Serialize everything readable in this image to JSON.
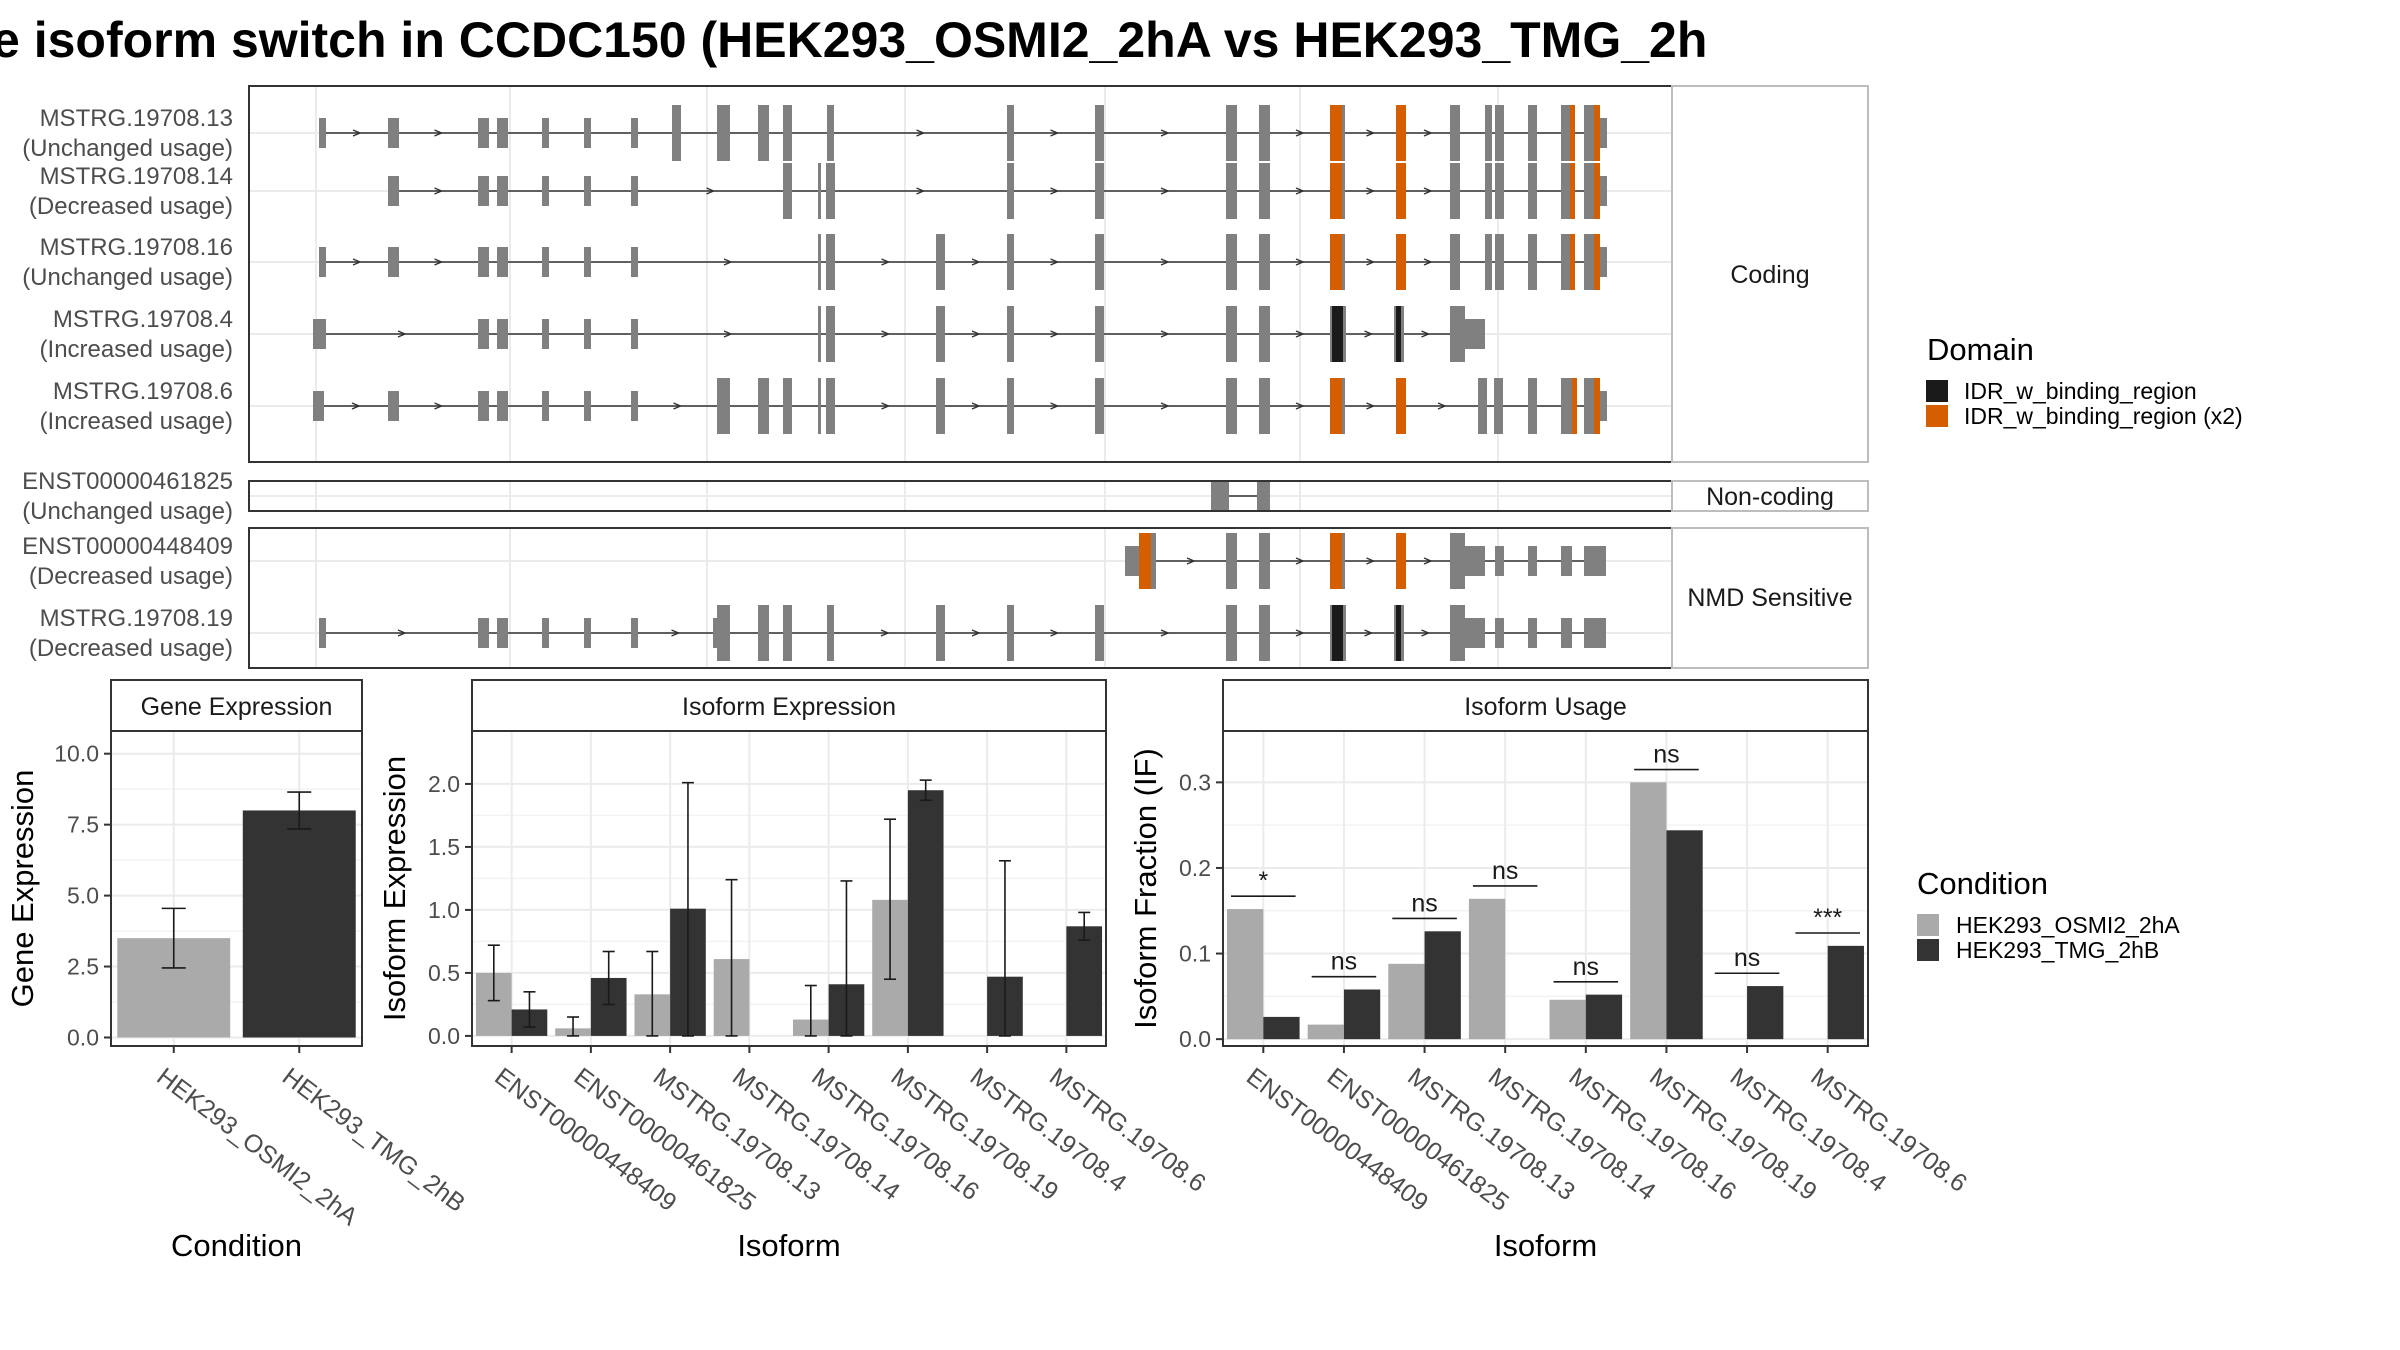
{
  "title": "e isoform switch in CCDC150 (HEK293_OSMI2_2hA vs HEK293_TMG_2h",
  "colors": {
    "exon": "#808080",
    "intron": "#333333",
    "idr": "#1a1a1a",
    "idr_x2": "#d55e00",
    "cond1": "#aaaaaa",
    "cond2": "#333333",
    "strip_bg": "#ffffff",
    "grid": "#ebebeb"
  },
  "isoform_panel": {
    "groups": [
      {
        "name": "coding",
        "label": "Coding",
        "isoforms": [
          {
            "id": "MSTRG.19708.13",
            "usage": "(Unchanged usage)"
          },
          {
            "id": "MSTRG.19708.14",
            "usage": "(Decreased usage)"
          },
          {
            "id": "MSTRG.19708.16",
            "usage": "(Unchanged usage)"
          },
          {
            "id": "MSTRG.19708.4",
            "usage": "(Increased usage)"
          },
          {
            "id": "MSTRG.19708.6",
            "usage": "(Increased usage)"
          }
        ]
      },
      {
        "name": "non-coding",
        "label": "Non-coding",
        "isoforms": [
          {
            "id": "ENST00000461825",
            "usage": "(Unchanged usage)"
          }
        ]
      },
      {
        "name": "nmd",
        "label": "NMD Sensitive",
        "isoforms": [
          {
            "id": "ENST00000448409",
            "usage": "(Decreased usage)"
          },
          {
            "id": "MSTRG.19708.19",
            "usage": "(Decreased usage)"
          }
        ]
      }
    ],
    "domain_legend": {
      "title": "Domain",
      "entries": [
        {
          "label": "IDR_w_binding_region",
          "color": "#1a1a1a"
        },
        {
          "label": "IDR_w_binding_region (x2)",
          "color": "#d55e00"
        }
      ]
    }
  },
  "chart_data": [
    {
      "type": "bar",
      "title": "Gene Expression",
      "xlabel": "Condition",
      "ylabel": "Gene Expression",
      "categories": [
        "HEK293_OSMI2_2hA",
        "HEK293_TMG_2hB"
      ],
      "values": [
        3.5,
        8.0
      ],
      "error": [
        [
          2.45,
          4.55
        ],
        [
          7.35,
          8.65
        ]
      ],
      "ylim": [
        -0.3,
        10.8
      ],
      "yticks": [
        0.0,
        2.5,
        5.0,
        7.5,
        10.0
      ],
      "ytick_labels": [
        "0.0",
        "2.5",
        "5.0",
        "7.5",
        "10.0"
      ],
      "grid": true
    },
    {
      "type": "bar",
      "title": "Isoform Expression",
      "xlabel": "Isoform",
      "ylabel": "Isoform Expression",
      "categories": [
        "ENST00000448409",
        "ENST00000461825",
        "MSTRG.19708.13",
        "MSTRG.19708.14",
        "MSTRG.19708.16",
        "MSTRG.19708.19",
        "MSTRG.19708.4",
        "MSTRG.19708.6"
      ],
      "series": [
        {
          "name": "HEK293_OSMI2_2hA",
          "values": [
            0.5,
            0.06,
            0.33,
            0.61,
            0.13,
            1.08,
            0.0,
            0.0
          ],
          "error": [
            [
              0.28,
              0.72
            ],
            [
              0.0,
              0.15
            ],
            [
              0.0,
              0.67
            ],
            [
              0.0,
              1.24
            ],
            [
              0.0,
              0.4
            ],
            [
              0.45,
              1.72
            ],
            null,
            null
          ]
        },
        {
          "name": "HEK293_TMG_2hB",
          "values": [
            0.21,
            0.46,
            1.01,
            0.0,
            0.41,
            1.95,
            0.47,
            0.87
          ],
          "error": [
            [
              0.07,
              0.35
            ],
            [
              0.25,
              0.67
            ],
            [
              0.0,
              2.01
            ],
            null,
            [
              0.0,
              1.23
            ],
            [
              1.87,
              2.03
            ],
            [
              0.0,
              1.39
            ],
            [
              0.76,
              0.98
            ]
          ]
        }
      ],
      "ylim": [
        -0.08,
        2.42
      ],
      "yticks": [
        0.0,
        0.5,
        1.0,
        1.5,
        2.0
      ],
      "ytick_labels": [
        "0.0",
        "0.5",
        "1.0",
        "1.5",
        "2.0"
      ],
      "grid": true
    },
    {
      "type": "bar",
      "title": "Isoform Usage",
      "xlabel": "Isoform",
      "ylabel": "Isoform Fraction (IF)",
      "categories": [
        "ENST00000448409",
        "ENST00000461825",
        "MSTRG.19708.13",
        "MSTRG.19708.14",
        "MSTRG.19708.16",
        "MSTRG.19708.19",
        "MSTRG.19708.4",
        "MSTRG.19708.6"
      ],
      "series": [
        {
          "name": "HEK293_OSMI2_2hA",
          "values": [
            0.152,
            0.017,
            0.088,
            0.164,
            0.046,
            0.3,
            0.0,
            0.0
          ]
        },
        {
          "name": "HEK293_TMG_2hB",
          "values": [
            0.026,
            0.058,
            0.126,
            0.0,
            0.052,
            0.244,
            0.062,
            0.109
          ]
        }
      ],
      "significance": [
        "*",
        "ns",
        "ns",
        "ns",
        "ns",
        "ns",
        "ns",
        "***"
      ],
      "sig_y": [
        0.167,
        0.073,
        0.141,
        0.179,
        0.067,
        0.315,
        0.077,
        0.124
      ],
      "ylim": [
        -0.008,
        0.36
      ],
      "yticks": [
        0.0,
        0.1,
        0.2,
        0.3
      ],
      "ytick_labels": [
        "0.0",
        "0.1",
        "0.2",
        "0.3"
      ],
      "grid": true
    }
  ],
  "condition_legend": {
    "title": "Condition",
    "entries": [
      {
        "label": "HEK293_OSMI2_2hA",
        "color": "#aaaaaa"
      },
      {
        "label": "HEK293_TMG_2hB",
        "color": "#333333"
      }
    ]
  }
}
